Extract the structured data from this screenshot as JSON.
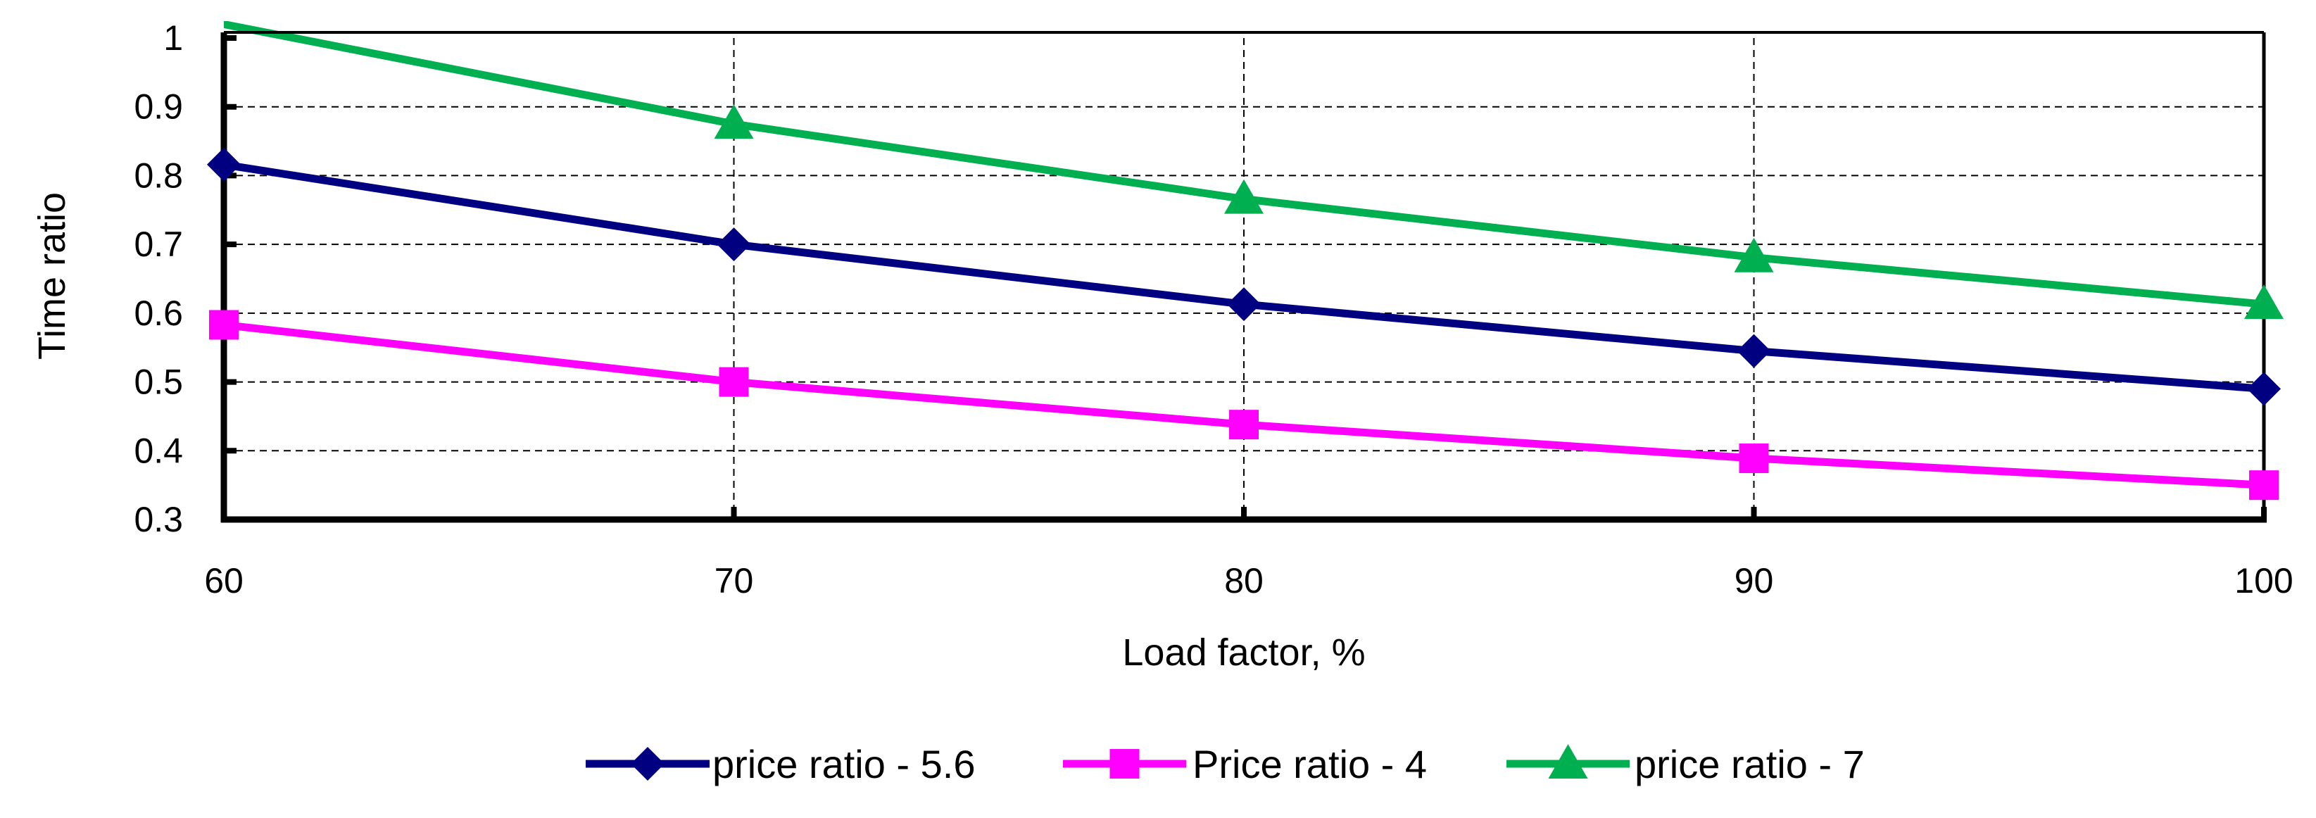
{
  "chart_data": {
    "type": "line",
    "title": "",
    "xlabel": "Load factor, %",
    "ylabel": "Time ratio",
    "x": [
      60,
      70,
      80,
      90,
      100
    ],
    "x_ticks": [
      "60",
      "70",
      "80",
      "90",
      "100"
    ],
    "y_ticks": [
      "0.3",
      "0.4",
      "0.5",
      "0.6",
      "0.7",
      "0.8",
      "0.9",
      "1"
    ],
    "xlim": [
      60,
      100
    ],
    "ylim": [
      0.3,
      1.0
    ],
    "grid": true,
    "legend_position": "bottom",
    "series": [
      {
        "name": "price ratio - 5.6",
        "values": [
          0.816,
          0.7,
          0.613,
          0.545,
          0.49
        ],
        "color": "#000080",
        "marker": "diamond"
      },
      {
        "name": "Price ratio - 4",
        "values": [
          0.583,
          0.5,
          0.438,
          0.389,
          0.35
        ],
        "color": "#FF00FF",
        "marker": "square"
      },
      {
        "name": "price ratio - 7",
        "values": [
          1.02,
          0.875,
          0.766,
          0.681,
          0.613
        ],
        "color": "#00B050",
        "marker": "triangle"
      }
    ]
  }
}
